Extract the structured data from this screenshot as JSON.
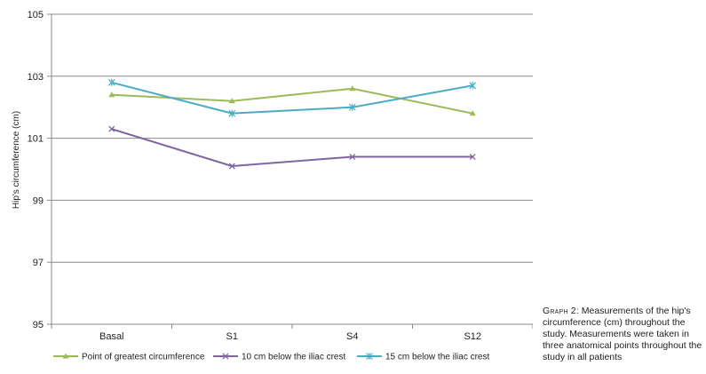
{
  "chart_data": {
    "type": "line",
    "title": "",
    "xlabel": "",
    "ylabel": "Hip's circumference (cm)",
    "categories": [
      "Basal",
      "S1",
      "S4",
      "S12"
    ],
    "ylim": [
      95,
      105
    ],
    "yticks": [
      95,
      97,
      99,
      101,
      103,
      105
    ],
    "grid": true,
    "legend_position": "bottom",
    "series": [
      {
        "name": "Point of greatest circumference",
        "values": [
          102.4,
          102.2,
          102.6,
          101.8
        ],
        "color": "#9bbb59",
        "marker": "triangle"
      },
      {
        "name": "10 cm below the iliac crest",
        "values": [
          101.3,
          100.1,
          100.4,
          100.4
        ],
        "color": "#8064a2",
        "marker": "x"
      },
      {
        "name": "15 cm below the iliac crest",
        "values": [
          102.8,
          101.8,
          102.0,
          102.7
        ],
        "color": "#4bacc6",
        "marker": "star"
      }
    ]
  },
  "caption": {
    "lead": "Graph 2:",
    "text": " Measurements of the hip's circumference (cm) throughout the study. Measurements were taken in three anatomical points throughout the study in all patients"
  }
}
